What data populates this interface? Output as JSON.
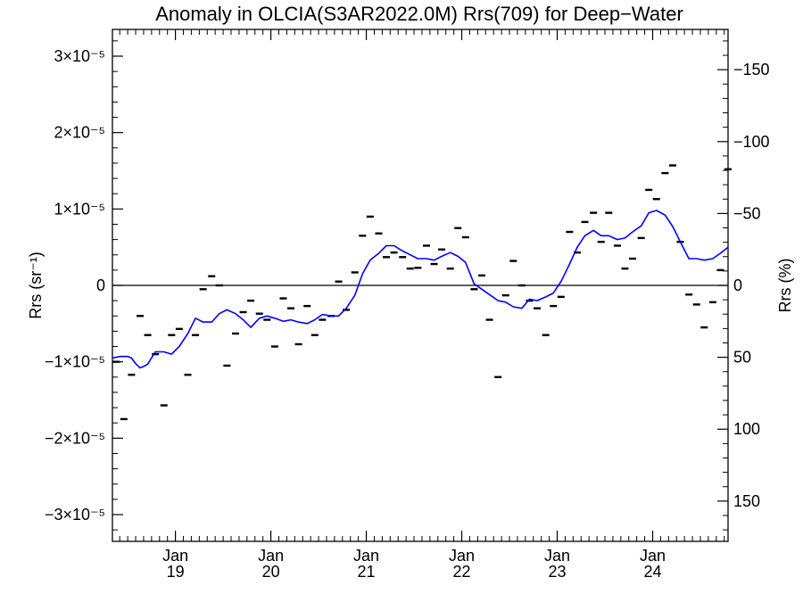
{
  "chart_data": {
    "type": "line",
    "title": "Anomaly in OLCIA(S3AR2022.0M) Rrs(709) for Deep−Water",
    "ylabel": "Rrs (sr⁻¹)",
    "y2label": "Rrs (%)",
    "xlim": [
      2018.34,
      2024.79
    ],
    "ylim": [
      -3.35e-05,
      3.35e-05
    ],
    "y2lim": [
      178,
      -178
    ],
    "y_ticks": [
      {
        "value": 3e-05,
        "label": "3×10⁻⁵"
      },
      {
        "value": 2e-05,
        "label": "2×10⁻⁵"
      },
      {
        "value": 1e-05,
        "label": "1×10⁻⁵"
      },
      {
        "value": 0,
        "label": "0"
      },
      {
        "value": -1e-05,
        "label": "−1×10⁻⁵"
      },
      {
        "value": -2e-05,
        "label": "−2×10⁻⁵"
      },
      {
        "value": -3e-05,
        "label": "−3×10⁻⁵"
      }
    ],
    "y2_ticks": [
      {
        "value": -150,
        "label": "−150"
      },
      {
        "value": -100,
        "label": "−100"
      },
      {
        "value": -50,
        "label": "−50"
      },
      {
        "value": 0,
        "label": "0"
      },
      {
        "value": 50,
        "label": "50"
      },
      {
        "value": 100,
        "label": "100"
      },
      {
        "value": 150,
        "label": "150"
      }
    ],
    "x_ticks": [
      {
        "value": 2019.0,
        "month": "Jan",
        "year": "19"
      },
      {
        "value": 2020.0,
        "month": "Jan",
        "year": "20"
      },
      {
        "value": 2021.0,
        "month": "Jan",
        "year": "21"
      },
      {
        "value": 2022.0,
        "month": "Jan",
        "year": "22"
      },
      {
        "value": 2023.0,
        "month": "Jan",
        "year": "23"
      },
      {
        "value": 2024.0,
        "month": "Jan",
        "year": "24"
      }
    ],
    "zero_line": 0,
    "grid": false,
    "series": [
      {
        "style": "marker-dash",
        "color": "#000000",
        "x": [
          2018.38,
          2018.46,
          2018.54,
          2018.63,
          2018.71,
          2018.79,
          2018.88,
          2018.96,
          2019.04,
          2019.13,
          2019.21,
          2019.29,
          2019.38,
          2019.46,
          2019.54,
          2019.63,
          2019.71,
          2019.79,
          2019.88,
          2019.96,
          2020.04,
          2020.13,
          2020.21,
          2020.29,
          2020.38,
          2020.46,
          2020.54,
          2020.63,
          2020.71,
          2020.79,
          2020.88,
          2020.96,
          2021.04,
          2021.13,
          2021.21,
          2021.29,
          2021.38,
          2021.46,
          2021.54,
          2021.63,
          2021.71,
          2021.79,
          2021.88,
          2021.96,
          2022.04,
          2022.13,
          2022.21,
          2022.29,
          2022.38,
          2022.46,
          2022.54,
          2022.63,
          2022.71,
          2022.79,
          2022.88,
          2022.96,
          2023.04,
          2023.13,
          2023.21,
          2023.29,
          2023.38,
          2023.46,
          2023.54,
          2023.63,
          2023.71,
          2023.79,
          2023.88,
          2023.96,
          2024.04,
          2024.13,
          2024.21,
          2024.29,
          2024.38,
          2024.46,
          2024.54,
          2024.63,
          2024.71,
          2024.79
        ],
        "y": [
          -1e-05,
          -1.75e-05,
          -1.17e-05,
          -4e-06,
          -6.5e-06,
          -9e-06,
          -1.57e-05,
          -6.5e-06,
          -5.7e-06,
          -1.17e-05,
          -6.5e-06,
          -5e-07,
          1.2e-06,
          0.0,
          -1.05e-05,
          -6.3e-06,
          -3.5e-06,
          -2e-06,
          -3.7e-06,
          -4.5e-06,
          -8e-06,
          -1.7e-06,
          -3e-06,
          -7.7e-06,
          -2.7e-06,
          -6.5e-06,
          -4.5e-06,
          -4e-06,
          5e-07,
          -3.2e-06,
          1.7e-06,
          6.5e-06,
          9e-06,
          6.8e-06,
          3.7e-06,
          4.3e-06,
          3.7e-06,
          2.2e-06,
          2.3e-06,
          5.2e-06,
          2.8e-06,
          4.7e-06,
          2.2e-06,
          7.5e-06,
          6.3e-06,
          -5e-07,
          1.3e-06,
          -4.5e-06,
          -1.2e-05,
          -1.3e-06,
          3.2e-06,
          0.0,
          -2e-06,
          -3e-06,
          -6.5e-06,
          -2.7e-06,
          -1.5e-06,
          7e-06,
          4.3e-06,
          8.3e-06,
          9.5e-06,
          5.7e-06,
          9.5e-06,
          5.2e-06,
          2.2e-06,
          3.5e-06,
          6.2e-06,
          1.25e-05,
          1.13e-05,
          1.47e-05,
          1.57e-05,
          5.7e-06,
          -1.2e-06,
          -2.5e-06,
          -5.5e-06,
          -2.2e-06,
          2e-06,
          1.52e-05
        ]
      },
      {
        "style": "line",
        "color": "#0000ff",
        "x": [
          2018.34,
          2018.42,
          2018.5,
          2018.54,
          2018.58,
          2018.63,
          2018.67,
          2018.71,
          2018.79,
          2018.88,
          2018.96,
          2019.04,
          2019.13,
          2019.21,
          2019.29,
          2019.38,
          2019.46,
          2019.54,
          2019.63,
          2019.71,
          2019.79,
          2019.88,
          2019.96,
          2020.04,
          2020.13,
          2020.21,
          2020.29,
          2020.38,
          2020.46,
          2020.54,
          2020.63,
          2020.71,
          2020.79,
          2020.88,
          2020.96,
          2021.04,
          2021.13,
          2021.21,
          2021.29,
          2021.38,
          2021.46,
          2021.54,
          2021.63,
          2021.71,
          2021.79,
          2021.88,
          2021.96,
          2022.04,
          2022.13,
          2022.21,
          2022.29,
          2022.38,
          2022.46,
          2022.54,
          2022.63,
          2022.71,
          2022.79,
          2022.88,
          2022.96,
          2023.04,
          2023.13,
          2023.21,
          2023.29,
          2023.38,
          2023.46,
          2023.54,
          2023.63,
          2023.71,
          2023.79,
          2023.88,
          2023.96,
          2024.04,
          2024.13,
          2024.21,
          2024.29,
          2024.38,
          2024.46,
          2024.54,
          2024.63,
          2024.71,
          2024.79
        ],
        "y": [
          -9.5e-06,
          -9.3e-06,
          -9.3e-06,
          -9.5e-06,
          -1.02e-05,
          -1.08e-05,
          -1.06e-05,
          -1.03e-05,
          -8.7e-06,
          -8.7e-06,
          -9e-06,
          -8e-06,
          -6.3e-06,
          -4.3e-06,
          -4.8e-06,
          -4.8e-06,
          -3.7e-06,
          -3.2e-06,
          -3.7e-06,
          -4.5e-06,
          -5.5e-06,
          -4.3e-06,
          -4e-06,
          -4.3e-06,
          -4.7e-06,
          -4.5e-06,
          -4.8e-06,
          -5e-06,
          -4.5e-06,
          -3.8e-06,
          -4e-06,
          -4e-06,
          -3e-06,
          -1.3e-06,
          1.5e-06,
          3.3e-06,
          4.2e-06,
          5.2e-06,
          5.2e-06,
          4.5e-06,
          4e-06,
          3.5e-06,
          3.5e-06,
          3.3e-06,
          3.8e-06,
          4.3e-06,
          3.8e-06,
          3e-06,
          2e-07,
          -5e-07,
          -1.2e-06,
          -2e-06,
          -2.2e-06,
          -2.8e-06,
          -3e-06,
          -1.8e-06,
          -2e-06,
          -1.5e-06,
          -1e-06,
          5e-07,
          2.8e-06,
          5e-06,
          6.5e-06,
          7.2e-06,
          6.5e-06,
          6.5e-06,
          6e-06,
          6.2e-06,
          7e-06,
          7.8e-06,
          9.5e-06,
          9.8e-06,
          9.2e-06,
          7.7e-06,
          5.7e-06,
          3.5e-06,
          3.5e-06,
          3.3e-06,
          3.5e-06,
          4.2e-06,
          5e-06
        ]
      }
    ]
  }
}
